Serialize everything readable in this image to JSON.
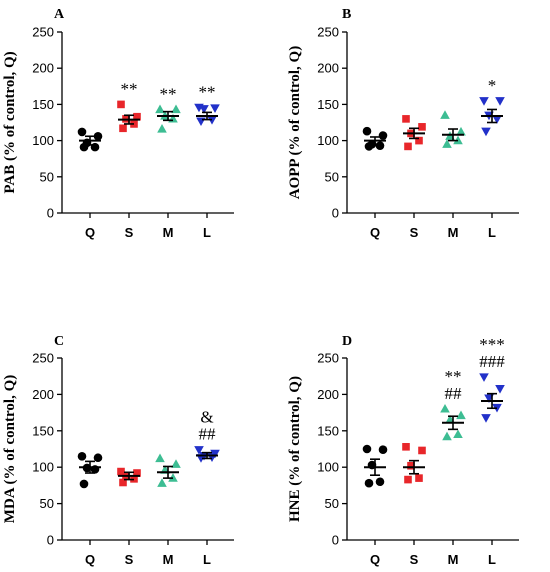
{
  "chart_data": [
    {
      "panel": "A",
      "type": "scatter",
      "ylabel": "PAB (% of control, Q)",
      "ylim": [
        0,
        250
      ],
      "yticks": [
        0,
        50,
        100,
        150,
        200,
        250
      ],
      "categories": [
        "Q",
        "S",
        "M",
        "L"
      ],
      "groups": [
        {
          "name": "Q",
          "color": "#000000",
          "marker": "circle",
          "mean": 100,
          "sem": 6,
          "points": [
            112,
            106,
            97,
            91,
            91
          ],
          "annotation": []
        },
        {
          "name": "S",
          "color": "#e8262a",
          "marker": "square",
          "mean": 129,
          "sem": 6,
          "points": [
            150,
            133,
            130,
            123,
            117
          ],
          "annotation": [
            "**"
          ]
        },
        {
          "name": "M",
          "color": "#3dbd93",
          "marker": "triangle-up",
          "mean": 134,
          "sem": 6,
          "points": [
            143,
            143,
            134,
            130,
            116
          ],
          "annotation": [
            "**"
          ]
        },
        {
          "name": "L",
          "color": "#2231c9",
          "marker": "triangle-down",
          "mean": 134,
          "sem": 5,
          "points": [
            146,
            145,
            144,
            129,
            127
          ],
          "annotation": [
            "**"
          ]
        }
      ]
    },
    {
      "panel": "B",
      "type": "scatter",
      "ylabel": "AOPP (% of control, Q)",
      "ylim": [
        0,
        250
      ],
      "yticks": [
        0,
        50,
        100,
        150,
        200,
        250
      ],
      "categories": [
        "Q",
        "S",
        "M",
        "L"
      ],
      "groups": [
        {
          "name": "Q",
          "color": "#000000",
          "marker": "circle",
          "mean": 100,
          "sem": 5,
          "points": [
            113,
            107,
            95,
            93,
            92
          ],
          "annotation": []
        },
        {
          "name": "S",
          "color": "#e8262a",
          "marker": "square",
          "mean": 110,
          "sem": 7,
          "points": [
            130,
            119,
            110,
            100,
            92
          ],
          "annotation": []
        },
        {
          "name": "M",
          "color": "#3dbd93",
          "marker": "triangle-up",
          "mean": 108,
          "sem": 8,
          "points": [
            135,
            112,
            106,
            100,
            95
          ],
          "annotation": []
        },
        {
          "name": "L",
          "color": "#2231c9",
          "marker": "triangle-down",
          "mean": 134,
          "sem": 9,
          "points": [
            155,
            155,
            135,
            130,
            113
          ],
          "annotation": [
            "*"
          ]
        }
      ]
    },
    {
      "panel": "C",
      "type": "scatter",
      "ylabel": "MDA (% of control, Q)",
      "ylim": [
        0,
        250
      ],
      "yticks": [
        0,
        50,
        100,
        150,
        200,
        250
      ],
      "categories": [
        "Q",
        "S",
        "M",
        "L"
      ],
      "groups": [
        {
          "name": "Q",
          "color": "#000000",
          "marker": "circle",
          "mean": 100,
          "sem": 8,
          "points": [
            115,
            113,
            99,
            97,
            77
          ],
          "annotation": []
        },
        {
          "name": "S",
          "color": "#e8262a",
          "marker": "square",
          "mean": 88,
          "sem": 5,
          "points": [
            94,
            92,
            88,
            84,
            79
          ],
          "annotation": []
        },
        {
          "name": "M",
          "color": "#3dbd93",
          "marker": "triangle-up",
          "mean": 93,
          "sem": 8,
          "points": [
            112,
            104,
            96,
            85,
            78
          ],
          "annotation": []
        },
        {
          "name": "L",
          "color": "#2231c9",
          "marker": "triangle-down",
          "mean": 116,
          "sem": 4,
          "points": [
            124,
            119,
            116,
            114,
            113
          ],
          "annotation": [
            "&",
            "##"
          ]
        }
      ]
    },
    {
      "panel": "D",
      "type": "scatter",
      "ylabel": "HNE (% of control, Q)",
      "ylim": [
        0,
        250
      ],
      "yticks": [
        0,
        50,
        100,
        150,
        200,
        250
      ],
      "categories": [
        "Q",
        "S",
        "M",
        "L"
      ],
      "groups": [
        {
          "name": "Q",
          "color": "#000000",
          "marker": "circle",
          "mean": 100,
          "sem": 11,
          "points": [
            125,
            124,
            103,
            80,
            78
          ],
          "annotation": []
        },
        {
          "name": "S",
          "color": "#e8262a",
          "marker": "square",
          "mean": 100,
          "sem": 9,
          "points": [
            128,
            123,
            102,
            85,
            83
          ],
          "annotation": []
        },
        {
          "name": "M",
          "color": "#3dbd93",
          "marker": "triangle-up",
          "mean": 161,
          "sem": 9,
          "points": [
            180,
            171,
            165,
            145,
            142
          ],
          "annotation": [
            "**",
            "##"
          ]
        },
        {
          "name": "L",
          "color": "#2231c9",
          "marker": "triangle-down",
          "mean": 191,
          "sem": 10,
          "points": [
            224,
            208,
            195,
            182,
            168
          ],
          "annotation": [
            "***",
            "###"
          ]
        }
      ]
    }
  ]
}
